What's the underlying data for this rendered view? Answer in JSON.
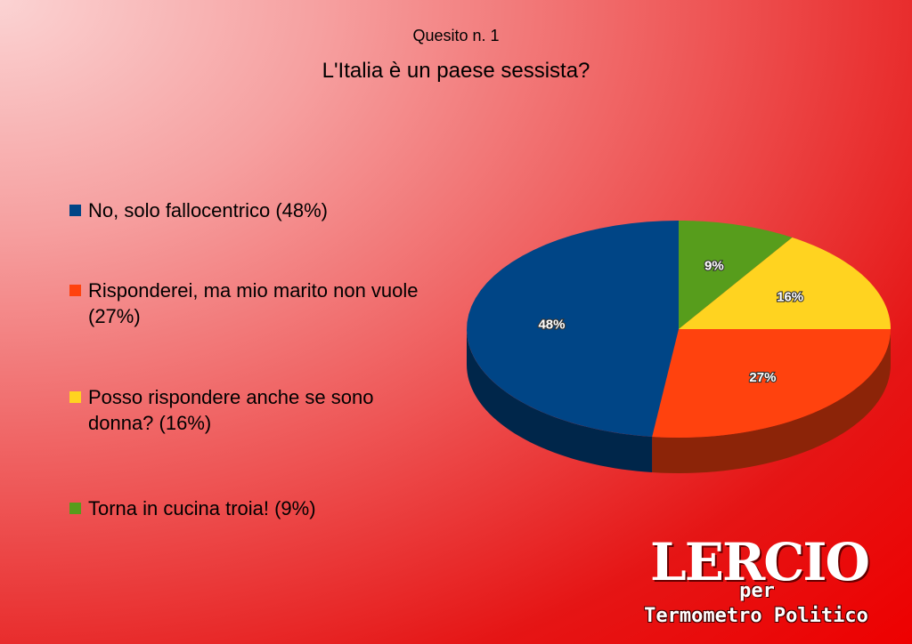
{
  "chart_data": {
    "type": "pie3d",
    "subtitle": "Quesito n. 1",
    "title": "L'Italia è un paese sessista?",
    "categories": [
      "No, solo fallocentrico (48%)",
      "Risponderei, ma mio marito non vuole (27%)",
      "Posso rispondere anche se sono donna? (16%)",
      "Torna in cucina troia! (9%)"
    ],
    "values": [
      48,
      27,
      16,
      9
    ],
    "value_labels": [
      "48%",
      "27%",
      "16%",
      "9%"
    ],
    "colors": [
      "#004586",
      "#ff420e",
      "#ffd320",
      "#579d1c"
    ]
  },
  "logo": {
    "name": "LERCIO",
    "per": "per",
    "partner": "Termometro Politico"
  }
}
